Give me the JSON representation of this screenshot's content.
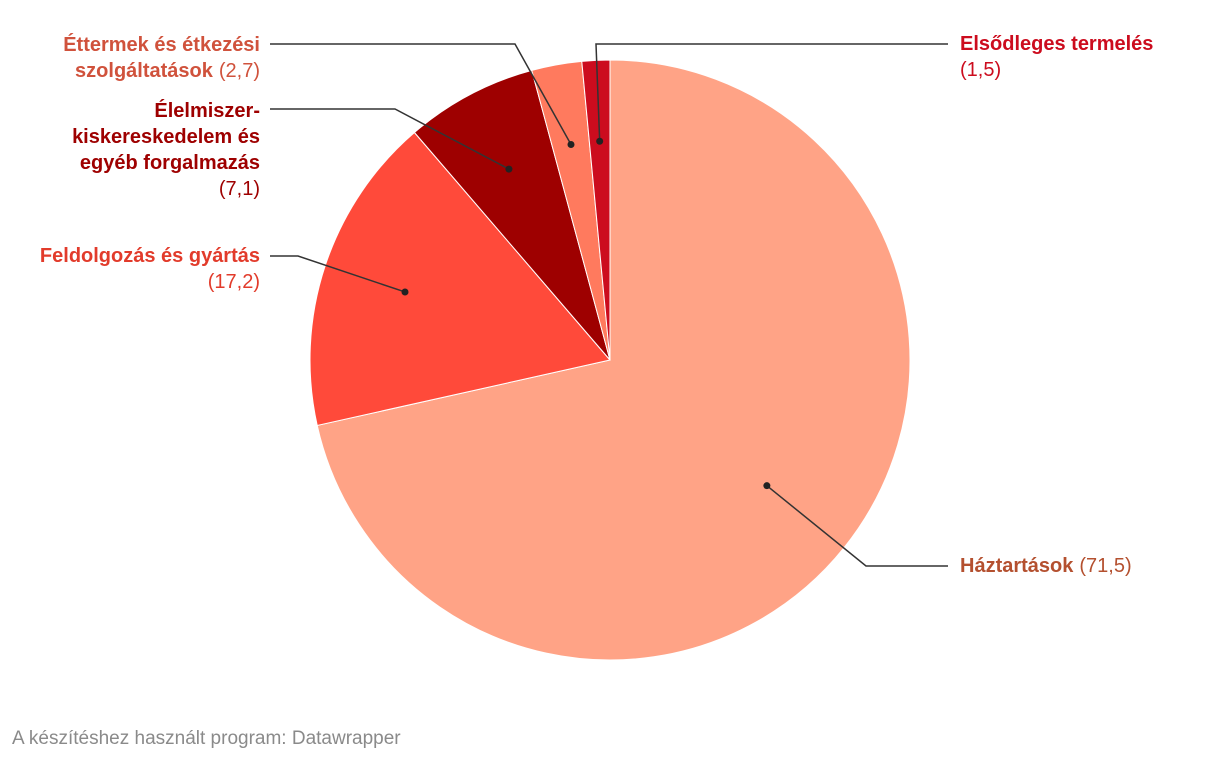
{
  "chart_data": {
    "type": "pie",
    "title": "",
    "unit": "",
    "slices": [
      {
        "name": "Háztartások",
        "value": 71.5,
        "value_label": "(71,5)",
        "color": "#ffa386",
        "label_color": "#b4502f"
      },
      {
        "name": "Feldolgozás és gyártás",
        "value": 17.2,
        "value_label": "(17,2)",
        "color": "#ff4a3a",
        "label_color": "#e23b2b"
      },
      {
        "name": "Élelmiszer-kiskereskedelem és egyéb forgalmazás",
        "value": 7.1,
        "value_label": "(7,1)",
        "color": "#9e0000",
        "label_color": "#9e0000"
      },
      {
        "name": "Éttermek és étkezési szolgáltatások",
        "value": 2.7,
        "value_label": "(2,7)",
        "color": "#ff7a5e",
        "label_color": "#d0523c"
      },
      {
        "name": "Elsődleges termelés",
        "value": 1.5,
        "value_label": "(1,5)",
        "color": "#cc0c1e",
        "label_color": "#cc0c1e"
      }
    ]
  },
  "footer": "A készítéshez használt program: Datawrapper"
}
